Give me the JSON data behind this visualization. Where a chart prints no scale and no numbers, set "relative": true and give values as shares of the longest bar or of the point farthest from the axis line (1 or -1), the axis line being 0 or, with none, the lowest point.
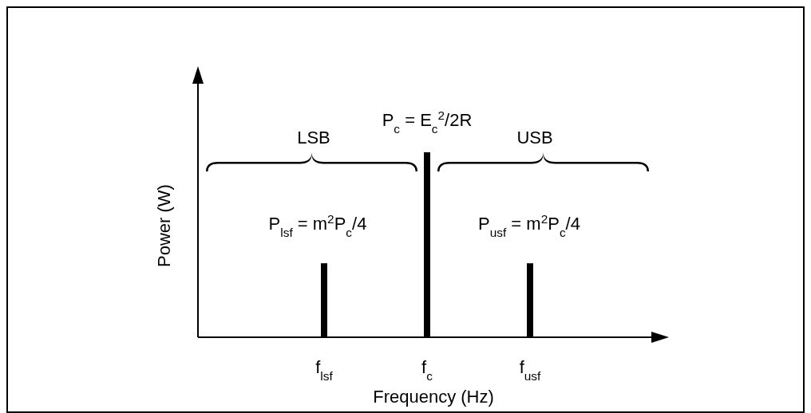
{
  "chart_data": {
    "type": "bar",
    "relative": true,
    "xlabel": "Frequency (Hz)",
    "ylabel": "Power (W)",
    "categories": [
      "f$_{lsf}$",
      "f$_{c}$",
      "f$_{usf}$"
    ],
    "values": [
      0.4,
      1,
      0.4
    ],
    "color": "#000000",
    "annotations": [
      "LSB",
      "USB",
      "P$_{c}$ = E$_{c}$$^{2}$/2R",
      "P$_{lsf}$ = m$^{2}$P$_{c}$/4",
      "P$_{usf}$ = m$^{2}$P$_{c}$/4"
    ]
  }
}
